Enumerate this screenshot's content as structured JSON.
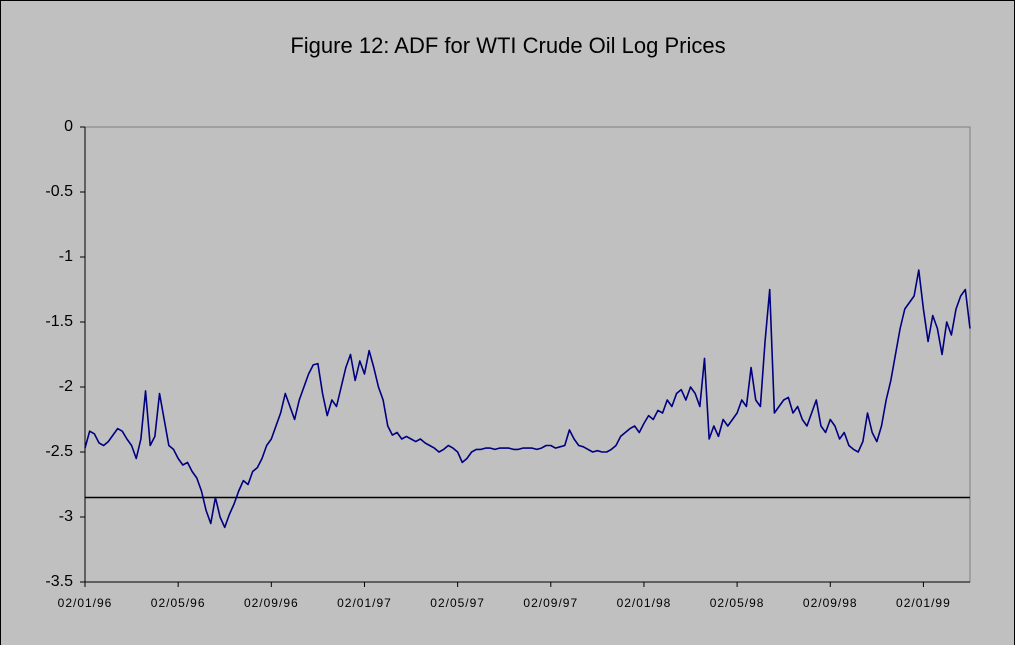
{
  "chart_data": {
    "type": "line",
    "title": "Figure 12: ADF for WTI Crude Oil Log Prices",
    "categories": [
      "02/01/96",
      null,
      null,
      null,
      null,
      null,
      null,
      null,
      null,
      null,
      null,
      null,
      null,
      null,
      null,
      null,
      null,
      null,
      null,
      null,
      "02/05/96",
      null,
      null,
      null,
      null,
      null,
      null,
      null,
      null,
      null,
      null,
      null,
      null,
      null,
      null,
      null,
      null,
      null,
      null,
      null,
      "02/09/96",
      null,
      null,
      null,
      null,
      null,
      null,
      null,
      null,
      null,
      null,
      null,
      null,
      null,
      null,
      null,
      null,
      null,
      null,
      null,
      "02/01/97",
      null,
      null,
      null,
      null,
      null,
      null,
      null,
      null,
      null,
      null,
      null,
      null,
      null,
      null,
      null,
      null,
      null,
      null,
      null,
      "02/05/97",
      null,
      null,
      null,
      null,
      null,
      null,
      null,
      null,
      null,
      null,
      null,
      null,
      null,
      null,
      null,
      null,
      null,
      null,
      null,
      "02/09/97",
      null,
      null,
      null,
      null,
      null,
      null,
      null,
      null,
      null,
      null,
      null,
      null,
      null,
      null,
      null,
      null,
      null,
      null,
      null,
      "02/01/98",
      null,
      null,
      null,
      null,
      null,
      null,
      null,
      null,
      null,
      null,
      null,
      null,
      null,
      null,
      null,
      null,
      null,
      null,
      null,
      "02/05/98",
      null,
      null,
      null,
      null,
      null,
      null,
      null,
      null,
      null,
      null,
      null,
      null,
      null,
      null,
      null,
      null,
      null,
      null,
      null,
      "02/09/98",
      null,
      null,
      null,
      null,
      null,
      null,
      null,
      null,
      null,
      null,
      null,
      null,
      null,
      null,
      null,
      null,
      null,
      null,
      null,
      "02/01/99",
      null,
      null,
      null,
      null,
      null,
      null,
      null,
      null,
      null,
      null
    ],
    "values": [
      -2.47,
      -2.34,
      -2.36,
      -2.43,
      -2.45,
      -2.42,
      -2.37,
      -2.32,
      -2.34,
      -2.4,
      -2.45,
      -2.55,
      -2.4,
      -2.03,
      -2.45,
      -2.38,
      -2.05,
      -2.25,
      -2.45,
      -2.48,
      -2.55,
      -2.6,
      -2.58,
      -2.65,
      -2.7,
      -2.8,
      -2.95,
      -3.05,
      -2.85,
      -3.0,
      -3.08,
      -2.98,
      -2.9,
      -2.8,
      -2.72,
      -2.75,
      -2.65,
      -2.62,
      -2.55,
      -2.45,
      -2.4,
      -2.3,
      -2.2,
      -2.05,
      -2.15,
      -2.25,
      -2.1,
      -2.0,
      -1.9,
      -1.83,
      -1.82,
      -2.05,
      -2.22,
      -2.1,
      -2.15,
      -2.0,
      -1.85,
      -1.75,
      -1.95,
      -1.8,
      -1.9,
      -1.72,
      -1.85,
      -2.0,
      -2.1,
      -2.3,
      -2.37,
      -2.35,
      -2.4,
      -2.38,
      -2.4,
      -2.42,
      -2.4,
      -2.43,
      -2.45,
      -2.47,
      -2.5,
      -2.48,
      -2.45,
      -2.47,
      -2.5,
      -2.58,
      -2.55,
      -2.5,
      -2.48,
      -2.48,
      -2.47,
      -2.47,
      -2.48,
      -2.47,
      -2.47,
      -2.47,
      -2.48,
      -2.48,
      -2.47,
      -2.47,
      -2.47,
      -2.48,
      -2.47,
      -2.45,
      -2.45,
      -2.47,
      -2.46,
      -2.45,
      -2.33,
      -2.4,
      -2.45,
      -2.46,
      -2.48,
      -2.5,
      -2.49,
      -2.5,
      -2.5,
      -2.48,
      -2.45,
      -2.38,
      -2.35,
      -2.32,
      -2.3,
      -2.35,
      -2.28,
      -2.22,
      -2.25,
      -2.18,
      -2.2,
      -2.1,
      -2.15,
      -2.05,
      -2.02,
      -2.1,
      -2.0,
      -2.05,
      -2.15,
      -1.78,
      -2.4,
      -2.3,
      -2.38,
      -2.25,
      -2.3,
      -2.25,
      -2.2,
      -2.1,
      -2.15,
      -1.85,
      -2.1,
      -2.15,
      -1.65,
      -1.25,
      -2.2,
      -2.15,
      -2.1,
      -2.08,
      -2.2,
      -2.15,
      -2.25,
      -2.3,
      -2.2,
      -2.1,
      -2.3,
      -2.35,
      -2.25,
      -2.3,
      -2.4,
      -2.35,
      -2.45,
      -2.48,
      -2.5,
      -2.42,
      -2.2,
      -2.35,
      -2.42,
      -2.3,
      -2.1,
      -1.95,
      -1.75,
      -1.55,
      -1.4,
      -1.35,
      -1.3,
      -1.1,
      -1.4,
      -1.65,
      -1.45,
      -1.55,
      -1.75,
      -1.5,
      -1.6,
      -1.4,
      -1.3,
      -1.25,
      -1.55
    ],
    "color": "#000080",
    "reference_line": {
      "value": -2.85,
      "color": "#000000"
    },
    "ylim": [
      -3.5,
      0
    ],
    "yticks": [
      0,
      -0.5,
      -1,
      -1.5,
      -2,
      -2.5,
      -3,
      -3.5
    ],
    "grid": false
  }
}
